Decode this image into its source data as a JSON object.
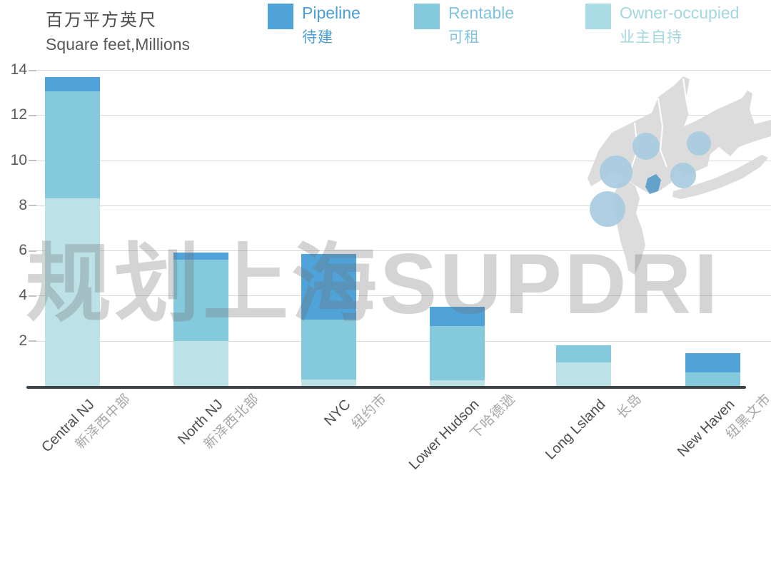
{
  "title": {
    "zh": "百万平方英尺",
    "en": "Square feet,Millions"
  },
  "legend": {
    "items": [
      {
        "en": "Pipeline",
        "zh": "待建",
        "color": "#4FA3D8",
        "text_color": "#4A9FD6"
      },
      {
        "en": "Rentable",
        "zh": "可租",
        "color": "#85C9DD",
        "text_color": "#82C4DB"
      },
      {
        "en": "Owner-occupied",
        "zh": "业主自持",
        "color": "#A9DCE4",
        "text_color": "#A3D8E0"
      }
    ]
  },
  "watermark": "规划上海SUPDRI",
  "chart_data": {
    "type": "bar",
    "stacked": true,
    "grid": true,
    "legend_position": "top",
    "title": "百万平方英尺 Square feet, Millions",
    "xlabel": "",
    "ylabel": "",
    "ylim": [
      0,
      14
    ],
    "yticks": [
      2,
      4,
      6,
      8,
      10,
      12,
      14
    ],
    "categories": [
      {
        "en": "Central NJ",
        "zh": "新泽西中部"
      },
      {
        "en": "North NJ",
        "zh": "新泽西北部"
      },
      {
        "en": "NYC",
        "zh": "纽约市"
      },
      {
        "en": "Lower Hudson",
        "zh": "下哈德逊"
      },
      {
        "en": "Long Lsland",
        "zh": "长岛"
      },
      {
        "en": "New Haven",
        "zh": "纽黑文市"
      }
    ],
    "series": [
      {
        "name": "Owner-occupied",
        "zh": "业主自持",
        "color": "#BCE2E8",
        "values": [
          8.3,
          2.0,
          0.3,
          0.25,
          1.05,
          0
        ]
      },
      {
        "name": "Rentable",
        "zh": "可租",
        "color": "#85C9DD",
        "values": [
          4.75,
          3.6,
          2.65,
          2.4,
          0.75,
          0.6
        ]
      },
      {
        "name": "Pipeline",
        "zh": "待建",
        "color": "#4FA3D8",
        "values": [
          0.65,
          0.3,
          2.9,
          0.85,
          0,
          0.85
        ]
      }
    ],
    "totals": [
      13.7,
      5.9,
      5.85,
      3.5,
      1.8,
      1.45
    ]
  },
  "map": {
    "description": "NY metro region map with blue market bubbles",
    "land_color": "#dcdcdc",
    "bubble_color": "#a6cbdf",
    "nyc_color": "#4f97c8",
    "bubble_count": 5
  }
}
